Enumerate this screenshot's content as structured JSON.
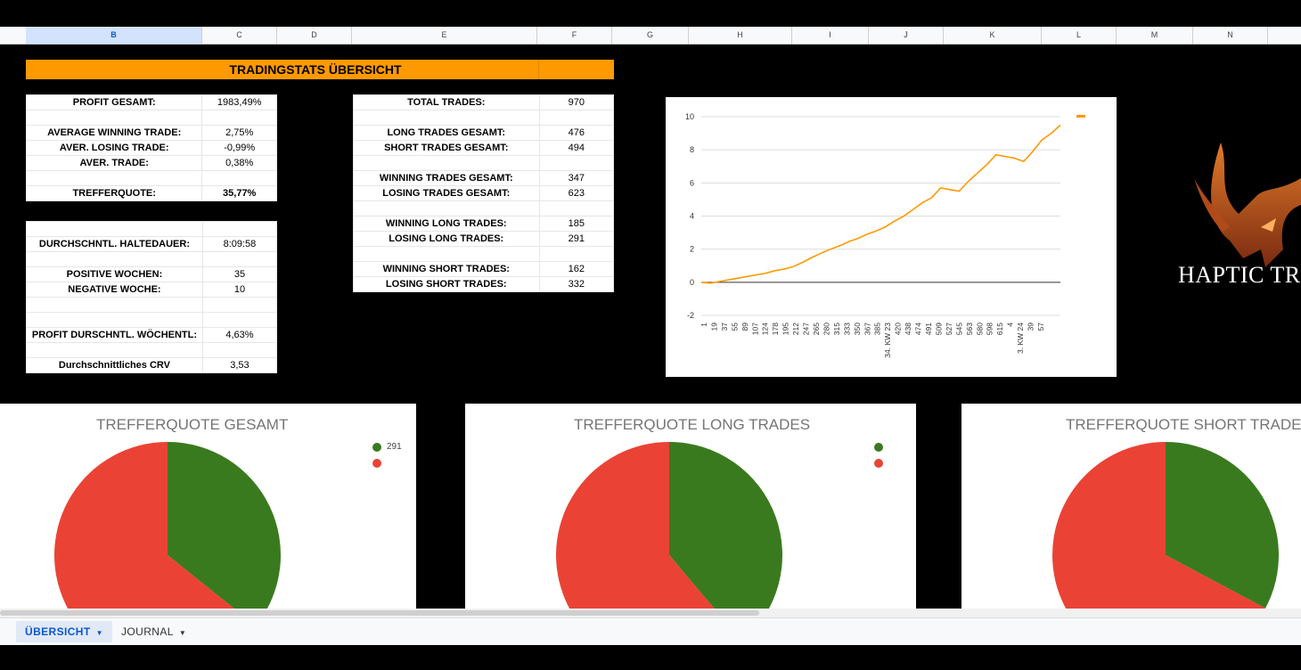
{
  "columns": [
    "B",
    "C",
    "D",
    "E",
    "F",
    "G",
    "H",
    "I",
    "J",
    "K",
    "L",
    "M",
    "N"
  ],
  "title": "TRADINGSTATS ÜBERSICHT",
  "table1": [
    {
      "label": "PROFIT GESAMT:",
      "value": "1983,49%"
    },
    {
      "label": "",
      "value": ""
    },
    {
      "label": "AVERAGE WINNING TRADE:",
      "value": "2,75%"
    },
    {
      "label": "AVER. LOSING TRADE:",
      "value": "-0,99%"
    },
    {
      "label": "AVER. TRADE:",
      "value": "0,38%"
    },
    {
      "label": "",
      "value": ""
    },
    {
      "label": "TREFFERQUOTE:",
      "value": "35,77%"
    }
  ],
  "table2": [
    {
      "label": "",
      "value": ""
    },
    {
      "label": "DURCHSCHNTL. HALTEDAUER:",
      "value": "8:09:58"
    },
    {
      "label": "",
      "value": ""
    },
    {
      "label": "POSITIVE WOCHEN:",
      "value": "35"
    },
    {
      "label": "NEGATIVE WOCHE:",
      "value": "10"
    },
    {
      "label": "",
      "value": ""
    },
    {
      "label": "",
      "value": ""
    },
    {
      "label": "PROFIT DURSCHNTL. WÖCHENTL:",
      "value": "4,63%"
    },
    {
      "label": "",
      "value": ""
    },
    {
      "label": "Durchschnittliches CRV",
      "value": "3,53"
    }
  ],
  "table3": [
    {
      "label": "TOTAL TRADES:",
      "value": "970"
    },
    {
      "label": "",
      "value": ""
    },
    {
      "label": "LONG TRADES GESAMT:",
      "value": "476"
    },
    {
      "label": "SHORT TRADES GESAMT:",
      "value": "494"
    },
    {
      "label": "",
      "value": ""
    },
    {
      "label": "WINNING TRADES GESAMT:",
      "value": "347"
    },
    {
      "label": "LOSING TRADES GESAMT:",
      "value": "623"
    },
    {
      "label": "",
      "value": ""
    },
    {
      "label": "WINNING LONG TRADES:",
      "value": "185"
    },
    {
      "label": "LOSING LONG TRADES:",
      "value": "291"
    },
    {
      "label": "",
      "value": ""
    },
    {
      "label": "WINNING SHORT TRADES:",
      "value": "162"
    },
    {
      "label": "LOSING SHORT TRADES:",
      "value": "332"
    }
  ],
  "line_chart": {
    "type": "line",
    "ylim": [
      -2,
      10
    ],
    "yticks": [
      "10",
      "8",
      "6",
      "4",
      "2",
      "0",
      "-2"
    ],
    "xticks": [
      "1",
      "19",
      "37",
      "55",
      "89",
      "107",
      "124",
      "178",
      "195",
      "212",
      "247",
      "265",
      "280",
      "315",
      "333",
      "350",
      "367",
      "385",
      "34. KW 23",
      "420",
      "438",
      "474",
      "491",
      "509",
      "527",
      "545",
      "563",
      "580",
      "598",
      "615",
      "4",
      "3. KW 24",
      "39",
      "57"
    ],
    "series_color": "#ff9900",
    "y": [
      0.0,
      -0.05,
      0.05,
      0.15,
      0.25,
      0.35,
      0.45,
      0.55,
      0.7,
      0.8,
      0.95,
      1.2,
      1.5,
      1.75,
      2.0,
      2.2,
      2.45,
      2.65,
      2.9,
      3.1,
      3.35,
      3.7,
      4.0,
      4.4,
      4.8,
      5.1,
      5.7,
      5.6,
      5.5,
      6.1,
      6.6,
      7.1,
      7.7,
      7.6,
      7.5,
      7.3,
      7.9,
      8.6,
      9.0,
      9.5
    ],
    "legend_color": "#ff9900"
  },
  "logo": {
    "text": "HAPTIC TR"
  },
  "pies": [
    {
      "title": "TREFFERQUOTE GESAMT",
      "values": [
        347,
        623
      ],
      "colors": [
        "#3a7a1f",
        "#ea4335"
      ],
      "legend_label": "291"
    },
    {
      "title": "TREFFERQUOTE LONG TRADES",
      "values": [
        185,
        291
      ],
      "colors": [
        "#3a7a1f",
        "#ea4335"
      ],
      "legend_label": ""
    },
    {
      "title": "TREFFERQUOTE SHORT TRADES",
      "values": [
        162,
        332
      ],
      "colors": [
        "#3a7a1f",
        "#ea4335"
      ],
      "legend_label": ""
    }
  ],
  "tabs": [
    {
      "label": "ÜBERSICHT"
    },
    {
      "label": "JOURNAL"
    }
  ]
}
